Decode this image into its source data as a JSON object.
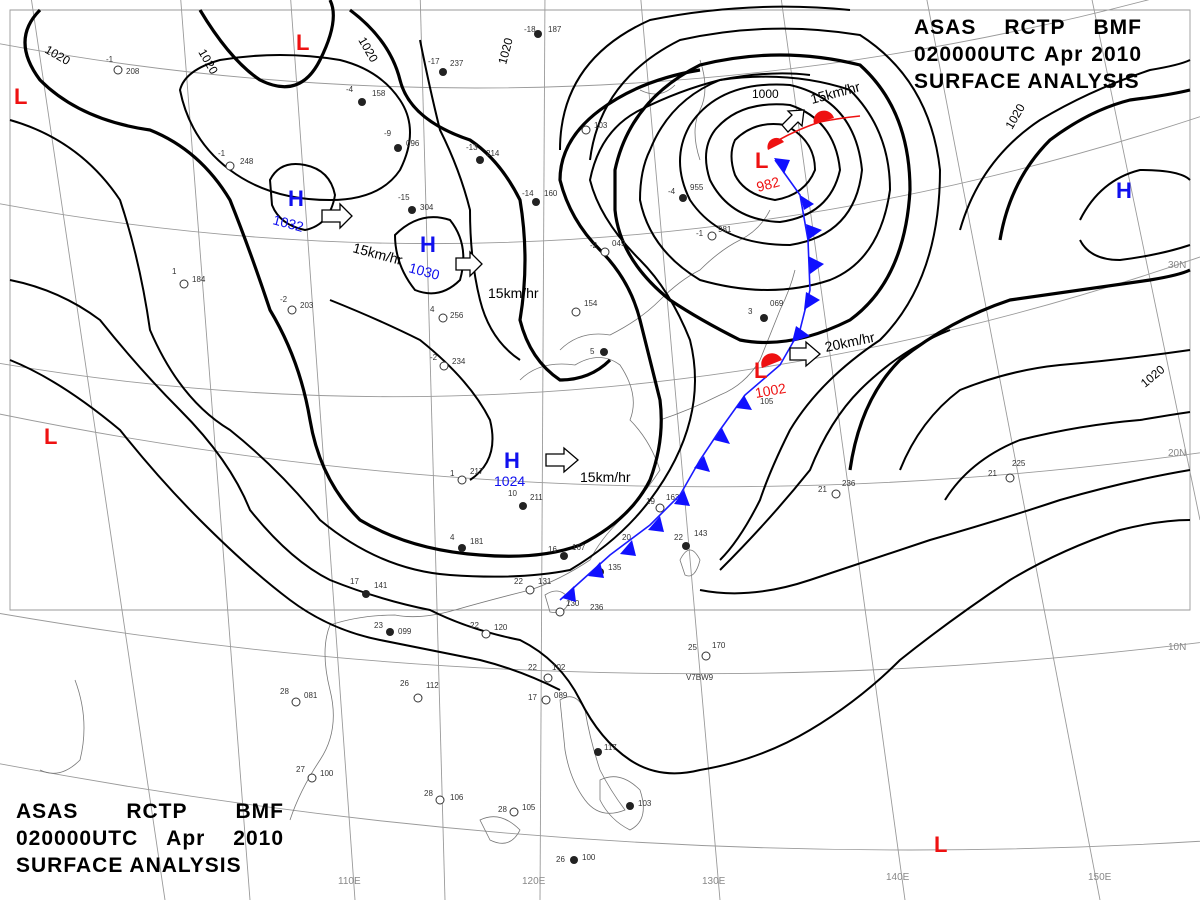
{
  "title": {
    "line1": [
      "ASAS",
      "RCTP",
      "BMF"
    ],
    "line2": [
      "020000UTC",
      "Apr",
      "2010"
    ],
    "line3": "SURFACE ANALYSIS"
  },
  "grid_labels": {
    "longitudes": [
      "110E",
      "120E",
      "130E",
      "140E",
      "150E"
    ],
    "latitudes": [
      "30N",
      "20N",
      "10N"
    ]
  },
  "isobar_labels": [
    "1020",
    "1020",
    "1020",
    "1020",
    "1020",
    "1000",
    "1020",
    "1020"
  ],
  "highs": [
    {
      "symbol": "H",
      "pressure": "1032",
      "motion": "15km/hr"
    },
    {
      "symbol": "H",
      "pressure": "1030",
      "motion": "15km/hr"
    },
    {
      "symbol": "H",
      "pressure": "1024",
      "motion": "15km/hr"
    },
    {
      "symbol": "H",
      "pressure": ""
    }
  ],
  "lows": [
    {
      "symbol": "L",
      "pressure": "982",
      "motion": "15km/hr"
    },
    {
      "symbol": "L",
      "pressure": "1002",
      "motion": "20km/hr"
    },
    {
      "symbol": "L",
      "pressure": ""
    },
    {
      "symbol": "L",
      "pressure": ""
    },
    {
      "symbol": "L",
      "pressure": ""
    },
    {
      "symbol": "L",
      "pressure": ""
    }
  ],
  "stations": [
    {
      "t": "-1",
      "p": "208"
    },
    {
      "t": "-17",
      "p": "237"
    },
    {
      "t": "-18",
      "p": "187"
    },
    {
      "t": "-4",
      "p": "158"
    },
    {
      "t": "-9",
      "p": "096"
    },
    {
      "t": "-1",
      "p": "248"
    },
    {
      "t": "-15",
      "p": "304"
    },
    {
      "t": "-13",
      "p": "214"
    },
    {
      "t": "-14",
      "p": "160"
    },
    {
      "t": "",
      "p": "103"
    },
    {
      "t": "-4",
      "p": "955"
    },
    {
      "t": "-1",
      "p": "981"
    },
    {
      "t": "-2",
      "p": "049"
    },
    {
      "t": "1",
      "p": "184"
    },
    {
      "t": "-2",
      "p": "203"
    },
    {
      "t": "4",
      "p": "256"
    },
    {
      "t": "-2",
      "p": "234"
    },
    {
      "t": "",
      "p": "154"
    },
    {
      "t": "3",
      "p": "069"
    },
    {
      "t": "5",
      "p": "105"
    },
    {
      "t": "1",
      "p": "217"
    },
    {
      "t": "10",
      "p": "211"
    },
    {
      "t": "4",
      "p": "181"
    },
    {
      "t": "16",
      "p": "167"
    },
    {
      "t": "19",
      "p": "163"
    },
    {
      "t": "20",
      "p": "135"
    },
    {
      "t": "22",
      "p": "143"
    },
    {
      "t": "17",
      "p": "141"
    },
    {
      "t": "22",
      "p": "131"
    },
    {
      "t": "23",
      "p": "099"
    },
    {
      "t": "22",
      "p": "120"
    },
    {
      "t": "130",
      "p": "236"
    },
    {
      "t": "25",
      "p": "170"
    },
    {
      "t": "21",
      "p": "225"
    },
    {
      "t": "21",
      "p": "236"
    },
    {
      "t": "28",
      "p": "081"
    },
    {
      "t": "26",
      "p": "112"
    },
    {
      "t": "22",
      "p": "102"
    },
    {
      "t": "17",
      "p": "089"
    },
    {
      "t": "27",
      "p": "100"
    },
    {
      "t": "28",
      "p": "106"
    },
    {
      "t": "28",
      "p": "105"
    },
    {
      "t": "",
      "p": "117"
    },
    {
      "t": "",
      "p": "103"
    },
    {
      "t": "26",
      "p": "100"
    }
  ],
  "ship_id": "V7BW9"
}
